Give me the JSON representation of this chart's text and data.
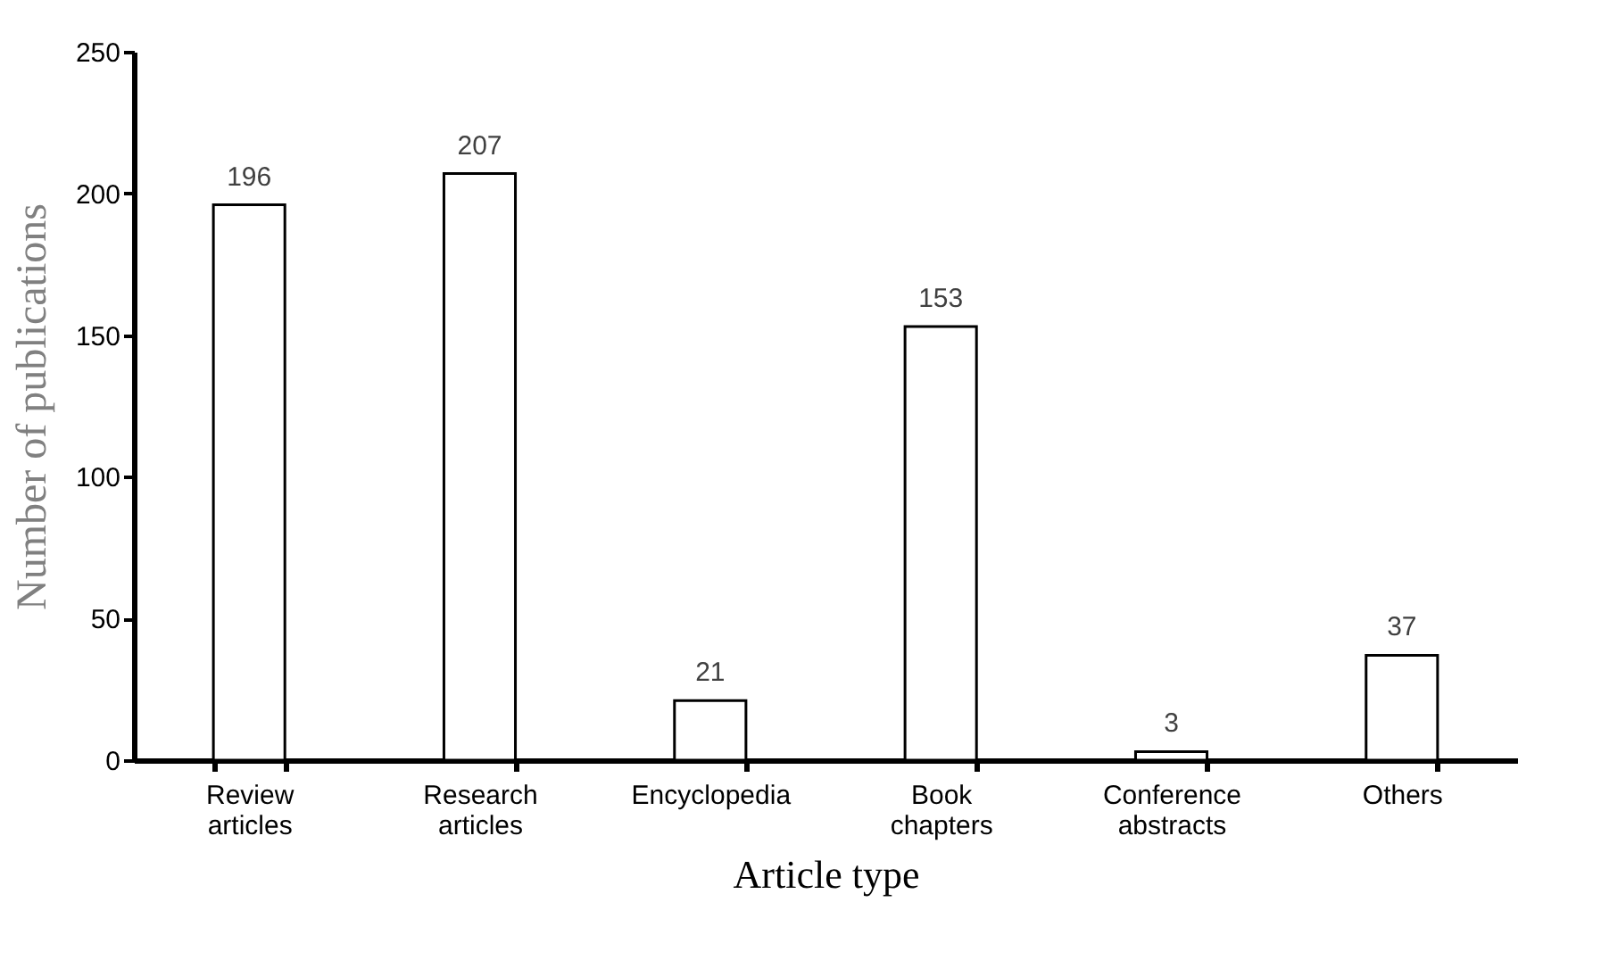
{
  "chart_data": {
    "type": "bar",
    "xlabel": "Article type",
    "ylabel": "Number of publications",
    "categories": [
      "Review articles",
      "Research articles",
      "Encyclopedia",
      "Book chapters",
      "Conference abstracts",
      "Others"
    ],
    "values": [
      196,
      207,
      21,
      153,
      3,
      37
    ],
    "color": "#ffffff",
    "ylim": [
      0,
      250
    ],
    "yticks": [
      0,
      50,
      100,
      150,
      200,
      250
    ],
    "grid": false,
    "data_labels": true
  }
}
